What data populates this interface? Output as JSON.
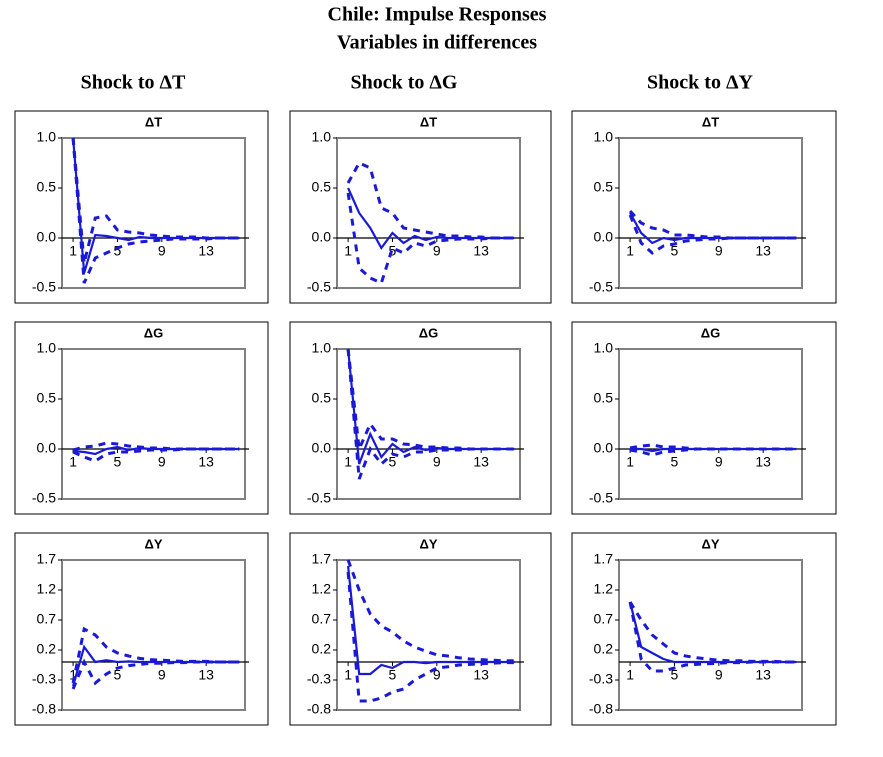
{
  "title": "Chile: Impulse Responses",
  "subtitle": "Variables in differences",
  "column_titles": [
    "Shock to ΔT",
    "Shock to ΔG",
    "Shock to ΔY"
  ],
  "chart_data": [
    {
      "type": "line",
      "title": "ΔT",
      "x": [
        1,
        2,
        3,
        4,
        5,
        6,
        7,
        8,
        9,
        10,
        11,
        12,
        13,
        14,
        15,
        16
      ],
      "xlim": [
        0,
        16.5
      ],
      "xticks": [
        1,
        5,
        9,
        13
      ],
      "ylim": [
        -0.5,
        1
      ],
      "yticks": [
        -0.5,
        {
          "value": 0,
          "label": "0.0"
        },
        0.5,
        {
          "value": 1,
          "label": "1.0"
        }
      ],
      "series": [
        {
          "color": "#1a1ad6",
          "values": [
            1.0,
            -0.35,
            0.03,
            0.02,
            0.0,
            -0.02,
            0.01,
            0.0,
            0.0,
            0.0,
            0.0,
            0.0,
            0.0,
            0.0,
            0.0,
            0.0
          ]
        },
        {
          "color": "#1a1ad6",
          "dash": true,
          "values": [
            1.0,
            -0.25,
            0.2,
            0.22,
            0.08,
            0.06,
            0.05,
            0.03,
            0.02,
            0.01,
            0.01,
            0.01,
            0.0,
            0.0,
            0.0,
            0.0
          ]
        },
        {
          "color": "#1a1ad6",
          "dash": true,
          "values": [
            1.0,
            -0.45,
            -0.2,
            -0.15,
            -0.1,
            -0.06,
            -0.04,
            -0.03,
            -0.02,
            -0.01,
            -0.01,
            -0.01,
            -0.01,
            0.0,
            0.0,
            0.0
          ]
        }
      ]
    },
    {
      "type": "line",
      "title": "ΔT",
      "x": [
        1,
        2,
        3,
        4,
        5,
        6,
        7,
        8,
        9,
        10,
        11,
        12,
        13,
        14,
        15,
        16
      ],
      "xlim": [
        0,
        16.5
      ],
      "xticks": [
        1,
        5,
        9,
        13
      ],
      "ylim": [
        -0.5,
        1
      ],
      "yticks": [
        -0.5,
        {
          "value": 0,
          "label": "0.0"
        },
        0.5,
        {
          "value": 1,
          "label": "1.0"
        }
      ],
      "series": [
        {
          "color": "#1a1ad6",
          "values": [
            0.5,
            0.25,
            0.1,
            -0.1,
            0.05,
            -0.05,
            0.02,
            -0.02,
            0.01,
            0.0,
            0.0,
            0.0,
            0.0,
            0.0,
            0.0,
            0.0
          ]
        },
        {
          "color": "#1a1ad6",
          "dash": true,
          "values": [
            0.55,
            0.75,
            0.7,
            0.3,
            0.25,
            0.1,
            0.08,
            0.06,
            0.04,
            0.02,
            0.02,
            0.01,
            0.01,
            0.0,
            0.0,
            0.0
          ]
        },
        {
          "color": "#1a1ad6",
          "dash": true,
          "values": [
            0.45,
            -0.3,
            -0.4,
            -0.45,
            -0.1,
            -0.15,
            -0.05,
            -0.08,
            -0.03,
            -0.02,
            -0.01,
            -0.01,
            -0.01,
            0.0,
            0.0,
            0.0
          ]
        }
      ]
    },
    {
      "type": "line",
      "title": "ΔT",
      "x": [
        1,
        2,
        3,
        4,
        5,
        6,
        7,
        8,
        9,
        10,
        11,
        12,
        13,
        14,
        15,
        16
      ],
      "xlim": [
        0,
        16.5
      ],
      "xticks": [
        1,
        5,
        9,
        13
      ],
      "ylim": [
        -0.5,
        1
      ],
      "yticks": [
        -0.5,
        {
          "value": 0,
          "label": "0.0"
        },
        0.5,
        {
          "value": 1,
          "label": "1.0"
        }
      ],
      "series": [
        {
          "color": "#1a1ad6",
          "values": [
            0.25,
            0.05,
            -0.05,
            0.0,
            -0.02,
            0.0,
            0.0,
            0.0,
            0.0,
            0.0,
            0.0,
            0.0,
            0.0,
            0.0,
            0.0,
            0.0
          ]
        },
        {
          "color": "#1a1ad6",
          "dash": true,
          "values": [
            0.27,
            0.15,
            0.1,
            0.08,
            0.03,
            0.03,
            0.02,
            0.01,
            0.01,
            0.0,
            0.0,
            0.0,
            0.0,
            0.0,
            0.0,
            0.0
          ]
        },
        {
          "color": "#1a1ad6",
          "dash": true,
          "values": [
            0.23,
            -0.05,
            -0.15,
            -0.08,
            -0.06,
            -0.03,
            -0.02,
            -0.01,
            -0.01,
            0.0,
            0.0,
            0.0,
            0.0,
            0.0,
            0.0,
            0.0
          ]
        }
      ]
    },
    {
      "type": "line",
      "title": "ΔG",
      "x": [
        1,
        2,
        3,
        4,
        5,
        6,
        7,
        8,
        9,
        10,
        11,
        12,
        13,
        14,
        15,
        16
      ],
      "xlim": [
        0,
        16.5
      ],
      "xticks": [
        1,
        5,
        9,
        13
      ],
      "ylim": [
        -0.5,
        1
      ],
      "yticks": [
        -0.5,
        {
          "value": 0,
          "label": "0.0"
        },
        0.5,
        {
          "value": 1,
          "label": "1.0"
        }
      ],
      "series": [
        {
          "color": "#1a1ad6",
          "values": [
            -0.02,
            -0.03,
            -0.05,
            0.0,
            0.02,
            -0.01,
            0.01,
            0.0,
            0.0,
            0.0,
            0.0,
            0.0,
            0.0,
            0.0,
            0.0,
            0.0
          ]
        },
        {
          "color": "#1a1ad6",
          "dash": true,
          "values": [
            -0.01,
            0.02,
            0.03,
            0.06,
            0.05,
            0.03,
            0.02,
            0.01,
            0.01,
            0.0,
            0.0,
            0.0,
            0.0,
            0.0,
            0.0,
            0.0
          ]
        },
        {
          "color": "#1a1ad6",
          "dash": true,
          "values": [
            -0.03,
            -0.08,
            -0.12,
            -0.05,
            -0.03,
            -0.03,
            -0.02,
            -0.01,
            -0.01,
            -0.01,
            0.0,
            0.0,
            0.0,
            0.0,
            0.0,
            0.0
          ]
        }
      ]
    },
    {
      "type": "line",
      "title": "ΔG",
      "x": [
        1,
        2,
        3,
        4,
        5,
        6,
        7,
        8,
        9,
        10,
        11,
        12,
        13,
        14,
        15,
        16
      ],
      "xlim": [
        0,
        16.5
      ],
      "xticks": [
        1,
        5,
        9,
        13
      ],
      "ylim": [
        -0.5,
        1
      ],
      "yticks": [
        -0.5,
        {
          "value": 0,
          "label": "0.0"
        },
        0.5,
        {
          "value": 1,
          "label": "1.0"
        }
      ],
      "series": [
        {
          "color": "#1a1ad6",
          "values": [
            1.0,
            -0.15,
            0.15,
            -0.08,
            0.05,
            -0.03,
            0.02,
            -0.01,
            0.01,
            0.0,
            0.0,
            0.0,
            0.0,
            0.0,
            0.0,
            0.0
          ]
        },
        {
          "color": "#1a1ad6",
          "dash": true,
          "values": [
            1.0,
            0.0,
            0.25,
            0.1,
            0.1,
            0.05,
            0.04,
            0.02,
            0.02,
            0.01,
            0.01,
            0.0,
            0.0,
            0.0,
            0.0,
            0.0
          ]
        },
        {
          "color": "#1a1ad6",
          "dash": true,
          "values": [
            1.0,
            -0.3,
            0.0,
            -0.15,
            -0.05,
            -0.08,
            -0.03,
            -0.03,
            -0.01,
            -0.01,
            -0.01,
            0.0,
            0.0,
            0.0,
            0.0,
            0.0
          ]
        }
      ]
    },
    {
      "type": "line",
      "title": "ΔG",
      "x": [
        1,
        2,
        3,
        4,
        5,
        6,
        7,
        8,
        9,
        10,
        11,
        12,
        13,
        14,
        15,
        16
      ],
      "xlim": [
        0,
        16.5
      ],
      "xticks": [
        1,
        5,
        9,
        13
      ],
      "ylim": [
        -0.5,
        1
      ],
      "yticks": [
        -0.5,
        {
          "value": 0,
          "label": "0.0"
        },
        0.5,
        {
          "value": 1,
          "label": "1.0"
        }
      ],
      "series": [
        {
          "color": "#1a1ad6",
          "values": [
            0.0,
            0.0,
            -0.02,
            0.0,
            0.0,
            0.0,
            0.0,
            0.0,
            0.0,
            0.0,
            0.0,
            0.0,
            0.0,
            0.0,
            0.0,
            0.0
          ]
        },
        {
          "color": "#1a1ad6",
          "dash": true,
          "values": [
            0.01,
            0.03,
            0.04,
            0.02,
            0.02,
            0.01,
            0.0,
            0.0,
            0.0,
            0.0,
            0.0,
            0.0,
            0.0,
            0.0,
            0.0,
            0.0
          ]
        },
        {
          "color": "#1a1ad6",
          "dash": true,
          "values": [
            -0.01,
            -0.03,
            -0.06,
            -0.03,
            -0.02,
            -0.01,
            0.0,
            0.0,
            0.0,
            0.0,
            0.0,
            0.0,
            0.0,
            0.0,
            0.0,
            0.0
          ]
        }
      ]
    },
    {
      "type": "line",
      "title": "ΔY",
      "x": [
        1,
        2,
        3,
        4,
        5,
        6,
        7,
        8,
        9,
        10,
        11,
        12,
        13,
        14,
        15,
        16
      ],
      "xlim": [
        0,
        16.5
      ],
      "xticks": [
        1,
        5,
        9,
        13
      ],
      "ylim": [
        -0.8,
        1.7
      ],
      "yticks": [
        -0.8,
        -0.3,
        0.2,
        0.7,
        1.2,
        1.7
      ],
      "series": [
        {
          "color": "#1a1ad6",
          "values": [
            -0.4,
            0.25,
            0.0,
            0.03,
            0.0,
            0.01,
            0.0,
            0.0,
            0.0,
            0.0,
            0.0,
            0.0,
            0.0,
            0.0,
            0.0,
            0.0
          ]
        },
        {
          "color": "#1a1ad6",
          "dash": true,
          "values": [
            -0.35,
            0.55,
            0.45,
            0.25,
            0.15,
            0.1,
            0.06,
            0.04,
            0.03,
            0.02,
            0.01,
            0.01,
            0.01,
            0.0,
            0.0,
            0.0
          ]
        },
        {
          "color": "#1a1ad6",
          "dash": true,
          "values": [
            -0.45,
            0.0,
            -0.35,
            -0.2,
            -0.1,
            -0.06,
            -0.04,
            -0.02,
            -0.02,
            -0.01,
            -0.01,
            0.0,
            0.0,
            0.0,
            0.0,
            0.0
          ]
        }
      ]
    },
    {
      "type": "line",
      "title": "ΔY",
      "x": [
        1,
        2,
        3,
        4,
        5,
        6,
        7,
        8,
        9,
        10,
        11,
        12,
        13,
        14,
        15,
        16
      ],
      "xlim": [
        0,
        16.5
      ],
      "xticks": [
        1,
        5,
        9,
        13
      ],
      "ylim": [
        -0.8,
        1.7
      ],
      "yticks": [
        -0.8,
        -0.3,
        0.2,
        0.7,
        1.2,
        1.7
      ],
      "series": [
        {
          "color": "#1a1ad6",
          "values": [
            1.6,
            -0.2,
            -0.2,
            -0.05,
            -0.1,
            0.0,
            0.0,
            -0.02,
            0.0,
            0.0,
            0.0,
            0.0,
            0.0,
            0.0,
            0.0,
            0.0
          ]
        },
        {
          "color": "#1a1ad6",
          "dash": true,
          "values": [
            1.7,
            1.2,
            0.8,
            0.6,
            0.5,
            0.35,
            0.25,
            0.18,
            0.12,
            0.1,
            0.07,
            0.05,
            0.04,
            0.03,
            0.02,
            0.02
          ]
        },
        {
          "color": "#1a1ad6",
          "dash": true,
          "values": [
            1.5,
            -0.65,
            -0.65,
            -0.6,
            -0.5,
            -0.45,
            -0.3,
            -0.2,
            -0.1,
            -0.08,
            -0.05,
            -0.04,
            -0.03,
            -0.02,
            -0.01,
            -0.01
          ]
        }
      ]
    },
    {
      "type": "line",
      "title": "ΔY",
      "x": [
        1,
        2,
        3,
        4,
        5,
        6,
        7,
        8,
        9,
        10,
        11,
        12,
        13,
        14,
        15,
        16
      ],
      "xlim": [
        0,
        16.5
      ],
      "xticks": [
        1,
        5,
        9,
        13
      ],
      "ylim": [
        -0.8,
        1.7
      ],
      "yticks": [
        -0.8,
        -0.3,
        0.2,
        0.7,
        1.2,
        1.7
      ],
      "series": [
        {
          "color": "#1a1ad6",
          "values": [
            1.0,
            0.25,
            0.15,
            0.05,
            0.0,
            0.0,
            0.0,
            0.0,
            0.0,
            0.0,
            0.0,
            0.0,
            0.0,
            0.0,
            0.0,
            0.0
          ]
        },
        {
          "color": "#1a1ad6",
          "dash": true,
          "values": [
            1.0,
            0.7,
            0.45,
            0.3,
            0.15,
            0.1,
            0.07,
            0.05,
            0.03,
            0.02,
            0.02,
            0.01,
            0.01,
            0.01,
            0.0,
            0.0
          ]
        },
        {
          "color": "#1a1ad6",
          "dash": true,
          "values": [
            1.0,
            0.05,
            -0.15,
            -0.15,
            -0.1,
            -0.05,
            -0.04,
            -0.03,
            -0.02,
            -0.01,
            -0.01,
            0.0,
            0.0,
            0.0,
            0.0,
            0.0
          ]
        }
      ]
    }
  ]
}
